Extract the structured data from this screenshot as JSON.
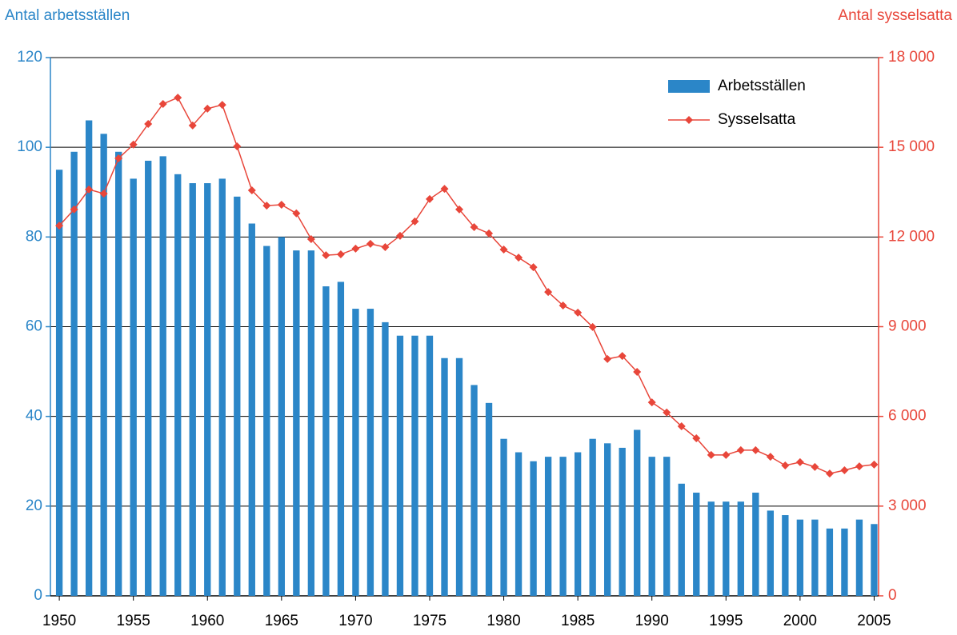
{
  "chart_data": {
    "type": "bar",
    "y_label": "Antal arbetsställen",
    "y2_label": "Antal sysselsatta",
    "x": [
      1950,
      1951,
      1952,
      1953,
      1954,
      1955,
      1956,
      1957,
      1958,
      1959,
      1960,
      1961,
      1962,
      1963,
      1964,
      1965,
      1966,
      1967,
      1968,
      1969,
      1970,
      1971,
      1972,
      1973,
      1974,
      1975,
      1976,
      1977,
      1978,
      1979,
      1980,
      1981,
      1982,
      1983,
      1984,
      1985,
      1986,
      1987,
      1988,
      1989,
      1990,
      1991,
      1992,
      1993,
      1994,
      1995,
      1996,
      1997,
      1998,
      1999,
      2000,
      2001,
      2002,
      2003,
      2004,
      2005
    ],
    "series": [
      {
        "name": "Arbetsställen",
        "type": "bar",
        "color": "#2b86c8",
        "values": [
          95,
          99,
          106,
          103,
          99,
          93,
          97,
          98,
          94,
          92,
          92,
          93,
          89,
          83,
          78,
          80,
          77,
          77,
          69,
          70,
          64,
          64,
          61,
          58,
          58,
          58,
          53,
          53,
          47,
          43,
          35,
          32,
          30,
          31,
          31,
          32,
          35,
          34,
          33,
          37,
          31,
          31,
          25,
          23,
          21,
          21,
          21,
          23,
          19,
          18,
          17,
          17,
          15,
          15,
          17,
          16
        ]
      },
      {
        "name": "Sysselsatta",
        "type": "line",
        "axis": "y2",
        "color": "#e8463a",
        "values": [
          12380,
          12920,
          13590,
          13450,
          14630,
          15090,
          15780,
          16450,
          16660,
          15730,
          16290,
          16420,
          15030,
          13560,
          13050,
          13080,
          12790,
          11930,
          11390,
          11420,
          11610,
          11770,
          11660,
          12040,
          12520,
          13270,
          13610,
          12920,
          12330,
          12120,
          11580,
          11310,
          10990,
          10160,
          9710,
          9470,
          8990,
          7920,
          8020,
          7490,
          6470,
          6130,
          5670,
          5270,
          4710,
          4710,
          4870,
          4870,
          4650,
          4360,
          4470,
          4310,
          4090,
          4200,
          4330,
          4390
        ]
      }
    ],
    "xlim": [
      1949.4,
      2005.3
    ],
    "xticks": [
      1950,
      1955,
      1960,
      1965,
      1970,
      1975,
      1980,
      1985,
      1990,
      1995,
      2000,
      2005
    ],
    "ylim": [
      0,
      120
    ],
    "yticks": [
      0,
      20,
      40,
      60,
      80,
      100,
      120
    ],
    "y2lim": [
      0,
      18000
    ],
    "y2ticks": [
      0,
      {
        "value": 3000,
        "label": "3 000"
      },
      {
        "value": 6000,
        "label": "6 000"
      },
      {
        "value": 9000,
        "label": "9 000"
      },
      {
        "value": 12000,
        "label": "12 000"
      },
      {
        "value": 15000,
        "label": "15 000"
      },
      {
        "value": 18000,
        "label": "18 000"
      }
    ],
    "grid": true,
    "legend": "top-right"
  }
}
